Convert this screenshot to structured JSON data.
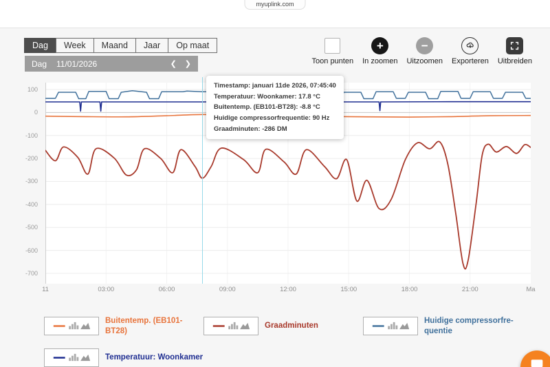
{
  "site": {
    "domain_label": "myuplink.com"
  },
  "tabs": [
    {
      "label": "Dag",
      "active": true
    },
    {
      "label": "Week",
      "active": false
    },
    {
      "label": "Maand",
      "active": false
    },
    {
      "label": "Jaar",
      "active": false
    },
    {
      "label": "Op maat",
      "active": false
    }
  ],
  "date_bar": {
    "mode": "Dag",
    "date": "11/01/2026",
    "prev_icon": "❮",
    "next_icon": "❯"
  },
  "controls": {
    "toon_punten": {
      "label": "Toon punten"
    },
    "in_zoomen": {
      "label": "In zoomen",
      "icon": "+"
    },
    "uitzoomen": {
      "label": "Uitzoomen",
      "icon": "−"
    },
    "exporteren": {
      "label": "Exporteren"
    },
    "uitbreiden": {
      "label": "Uitbreiden"
    }
  },
  "tooltip": {
    "lines": [
      "Timestamp: januari 11de 2026, 07:45:40",
      "Temperatuur: Woonkamer: 17.8 °C",
      "Buitentemp. (EB101-BT28): -8.8 °C",
      "Huidige compressorfrequentie: 90 Hz",
      "Graadminuten: -286 DM"
    ]
  },
  "chart_data": {
    "type": "line",
    "title": "",
    "xlabel": "",
    "ylabel": "",
    "ylim": [
      -700,
      100
    ],
    "yticks": [
      100,
      0,
      -100,
      -200,
      -300,
      -400,
      -500,
      -600,
      -700
    ],
    "xticks": [
      {
        "hour": 0,
        "label": "11"
      },
      {
        "hour": 3,
        "label": "03:00"
      },
      {
        "hour": 6,
        "label": "06:00"
      },
      {
        "hour": 9,
        "label": "09:00"
      },
      {
        "hour": 12,
        "label": "12:00"
      },
      {
        "hour": 15,
        "label": "15:00"
      },
      {
        "hour": 18,
        "label": "18:00"
      },
      {
        "hour": 21,
        "label": "21:00"
      },
      {
        "hour": 24,
        "label": "Ma"
      }
    ],
    "cursor_hour": 7.76,
    "series": [
      {
        "name": "Buitentemp. (EB101-BT28)",
        "color": "#e8743c",
        "width": 1.6,
        "smooth": true,
        "points": [
          [
            0,
            -16
          ],
          [
            2,
            -18
          ],
          [
            4,
            -19
          ],
          [
            6,
            -14
          ],
          [
            7.76,
            -8.8
          ],
          [
            9.5,
            -12
          ],
          [
            12,
            -15
          ],
          [
            14,
            -17
          ],
          [
            16,
            -19
          ],
          [
            18,
            -20
          ],
          [
            20,
            -18
          ],
          [
            22,
            -14
          ],
          [
            24,
            -13
          ]
        ]
      },
      {
        "name": "Graadminuten",
        "color": "#a8392b",
        "width": 1.8,
        "smooth": true,
        "points": [
          [
            0,
            -165
          ],
          [
            0.5,
            -210
          ],
          [
            0.9,
            -150
          ],
          [
            1.6,
            -195
          ],
          [
            2.1,
            -268
          ],
          [
            2.5,
            -158
          ],
          [
            3.4,
            -198
          ],
          [
            4,
            -272
          ],
          [
            4.5,
            -250
          ],
          [
            4.9,
            -158
          ],
          [
            5.7,
            -200
          ],
          [
            6.3,
            -262
          ],
          [
            6.7,
            -162
          ],
          [
            7.4,
            -235
          ],
          [
            7.76,
            -286
          ],
          [
            8.2,
            -235
          ],
          [
            8.7,
            -155
          ],
          [
            9.8,
            -205
          ],
          [
            10.5,
            -262
          ],
          [
            10.9,
            -160
          ],
          [
            11.8,
            -215
          ],
          [
            12.4,
            -268
          ],
          [
            12.9,
            -162
          ],
          [
            13.8,
            -235
          ],
          [
            14.4,
            -288
          ],
          [
            14.9,
            -205
          ],
          [
            15.4,
            -385
          ],
          [
            15.9,
            -295
          ],
          [
            16.5,
            -418
          ],
          [
            17.1,
            -378
          ],
          [
            17.8,
            -205
          ],
          [
            18.4,
            -132
          ],
          [
            19,
            -158
          ],
          [
            19.5,
            -128
          ],
          [
            19.9,
            -225
          ],
          [
            20.3,
            -445
          ],
          [
            20.65,
            -658
          ],
          [
            20.9,
            -645
          ],
          [
            21.3,
            -395
          ],
          [
            21.6,
            -185
          ],
          [
            21.9,
            -138
          ],
          [
            22.3,
            -172
          ],
          [
            22.8,
            -148
          ],
          [
            23.3,
            -178
          ],
          [
            23.7,
            -140
          ],
          [
            24,
            -152
          ]
        ]
      },
      {
        "name": "Huidige compressorfrequentie",
        "color": "#41719c",
        "width": 1.5,
        "smooth": false,
        "points": [
          [
            0,
            62
          ],
          [
            0.5,
            62
          ],
          [
            0.65,
            88
          ],
          [
            1.5,
            88
          ],
          [
            1.65,
            60
          ],
          [
            2,
            60
          ],
          [
            2.15,
            92
          ],
          [
            3,
            92
          ],
          [
            3.15,
            60
          ],
          [
            3.6,
            60
          ],
          [
            3.75,
            88
          ],
          [
            4.3,
            95
          ],
          [
            5,
            88
          ],
          [
            5.15,
            60
          ],
          [
            5.6,
            60
          ],
          [
            5.75,
            90
          ],
          [
            6.8,
            90
          ],
          [
            7,
            93
          ],
          [
            7.76,
            90
          ],
          [
            8.2,
            90
          ],
          [
            8.35,
            60
          ],
          [
            8.8,
            60
          ],
          [
            8.95,
            88
          ],
          [
            9.8,
            88
          ],
          [
            9.95,
            62
          ],
          [
            10.4,
            62
          ],
          [
            10.55,
            90
          ],
          [
            11.4,
            90
          ],
          [
            11.55,
            60
          ],
          [
            12,
            60
          ],
          [
            12.15,
            88
          ],
          [
            12.8,
            88
          ],
          [
            12.95,
            48
          ],
          [
            14.6,
            48
          ],
          [
            14.75,
            88
          ],
          [
            15.6,
            88
          ],
          [
            15.75,
            60
          ],
          [
            16.2,
            60
          ],
          [
            16.35,
            90
          ],
          [
            17.2,
            90
          ],
          [
            17.35,
            62
          ],
          [
            17.8,
            62
          ],
          [
            17.95,
            88
          ],
          [
            18.8,
            88
          ],
          [
            18.95,
            60
          ],
          [
            19.4,
            60
          ],
          [
            19.55,
            92
          ],
          [
            20.4,
            92
          ],
          [
            20.55,
            62
          ],
          [
            21,
            62
          ],
          [
            21.15,
            90
          ],
          [
            22,
            90
          ],
          [
            22.15,
            62
          ],
          [
            22.6,
            62
          ],
          [
            22.75,
            88
          ],
          [
            23.6,
            88
          ],
          [
            23.75,
            62
          ],
          [
            24,
            62
          ]
        ]
      },
      {
        "name": "Temperatuur: Woonkamer",
        "color": "#1f2e91",
        "width": 1.6,
        "smooth": false,
        "points": [
          [
            0,
            46
          ],
          [
            1.7,
            46
          ],
          [
            1.74,
            6
          ],
          [
            1.78,
            46
          ],
          [
            2.7,
            46
          ],
          [
            2.74,
            6
          ],
          [
            2.78,
            46
          ],
          [
            7.76,
            46
          ],
          [
            10,
            47
          ],
          [
            13,
            46
          ],
          [
            16.5,
            46
          ],
          [
            16.54,
            8
          ],
          [
            16.58,
            46
          ],
          [
            20,
            47
          ],
          [
            24,
            47
          ]
        ]
      }
    ]
  },
  "legend": [
    {
      "label": "Buitentemp. (EB101-BT28)",
      "color": "#e8743c"
    },
    {
      "label": "Graadminuten",
      "color": "#a8392b"
    },
    {
      "label": "Huidige compressorfre-quentie",
      "color": "#41719c"
    },
    {
      "label": "Temperatuur: Woonkamer",
      "color": "#1f2e91"
    }
  ]
}
